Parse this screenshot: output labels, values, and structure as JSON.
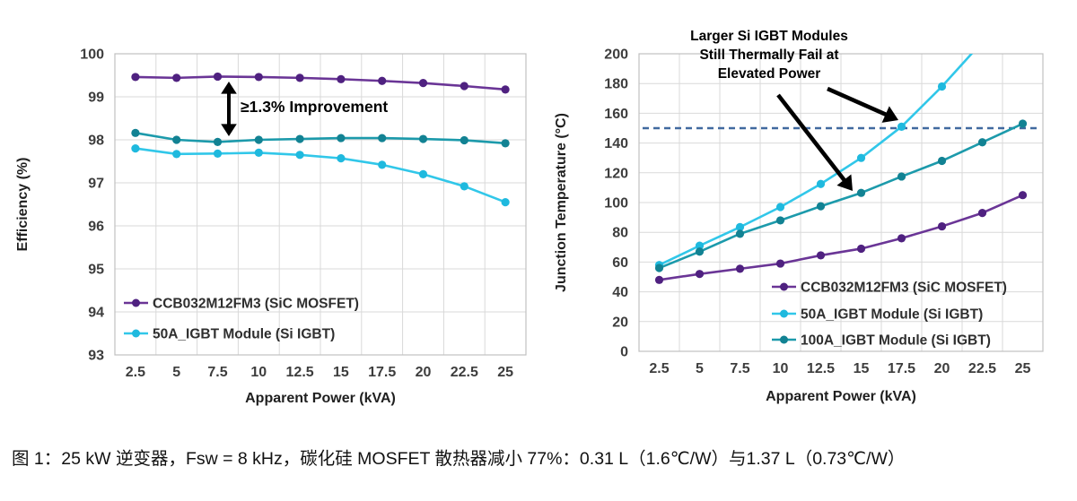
{
  "figure": {
    "caption": "图 1：25 kW 逆变器，Fsw = 8 kHz，碳化硅 MOSFET 散热器减小 77%：0.31 L（1.6℃/W）与1.37 L（0.73℃/W）"
  },
  "chart_data": [
    {
      "type": "line",
      "title": "",
      "xlabel": "Apparent Power (kVA)",
      "ylabel": "Efficiency (%)",
      "x_categories": [
        "2.5",
        "5",
        "7.5",
        "10",
        "12.5",
        "15",
        "17.5",
        "20",
        "22.5",
        "25"
      ],
      "ylim": [
        93,
        100
      ],
      "ytick_step": 1,
      "grid": true,
      "legend_position": "inside-bottom-left",
      "series": [
        {
          "name": "CCB032M12FM3 (SiC MOSFET)",
          "color": "#6a3596",
          "marker_color": "#4f2180",
          "in_legend": true,
          "values": [
            99.46,
            99.44,
            99.47,
            99.46,
            99.44,
            99.41,
            99.37,
            99.32,
            99.25,
            99.17
          ]
        },
        {
          "name": "100A_IGBT Module (Si IGBT)",
          "color": "#1c9aab",
          "marker_color": "#128293",
          "in_legend": false,
          "values": [
            98.16,
            98.0,
            97.95,
            98.0,
            98.02,
            98.04,
            98.04,
            98.02,
            97.99,
            97.92
          ]
        },
        {
          "name": "50A_IGBT Module (Si IGBT)",
          "color": "#31c7e9",
          "marker_color": "#1fb9de",
          "in_legend": true,
          "values": [
            97.8,
            97.67,
            97.68,
            97.7,
            97.65,
            97.57,
            97.42,
            97.2,
            96.92,
            96.55
          ]
        }
      ],
      "annotation": {
        "label": "≥1.3% Improvement"
      }
    },
    {
      "type": "line",
      "title": "",
      "xlabel": "Apparent Power (kVA)",
      "ylabel": "Junction Temperature (°C)",
      "x_categories": [
        "2.5",
        "5",
        "7.5",
        "10",
        "12.5",
        "15",
        "17.5",
        "20",
        "22.5",
        "25"
      ],
      "ylim": [
        0,
        200
      ],
      "ytick_step": 20,
      "grid": true,
      "legend_position": "inside-bottom-right",
      "threshold_line": {
        "value": 150,
        "style": "dashed",
        "color": "#41699f"
      },
      "series": [
        {
          "name": "CCB032M12FM3 (SiC MOSFET)",
          "color": "#6a3596",
          "marker_color": "#4f2180",
          "in_legend": true,
          "values": [
            48,
            52,
            55.5,
            59,
            64.5,
            69,
            76,
            84,
            93,
            105
          ]
        },
        {
          "name": "50A_IGBT Module (Si IGBT)",
          "color": "#31c7e9",
          "marker_color": "#1fb9de",
          "in_legend": true,
          "values": [
            58,
            71,
            83.5,
            97,
            112.5,
            130,
            151,
            178,
            208,
            null
          ]
        },
        {
          "name": "100A_IGBT Module (Si IGBT)",
          "color": "#1c9aab",
          "marker_color": "#128293",
          "in_legend": true,
          "values": [
            56,
            67,
            79,
            88,
            97.5,
            106.5,
            117.5,
            128,
            140.5,
            153
          ]
        }
      ],
      "annotation": {
        "lines": [
          "Larger Si IGBT Modules",
          "Still Thermally Fail at",
          "Elevated Power"
        ]
      }
    }
  ],
  "style_colors": {
    "gridline": "#d9d9d9",
    "plot_border": "#c0c0c0",
    "tick_text": "#3d3d3d",
    "axis_title_text": "#1f1f1f",
    "annotation_text": "#000000"
  }
}
